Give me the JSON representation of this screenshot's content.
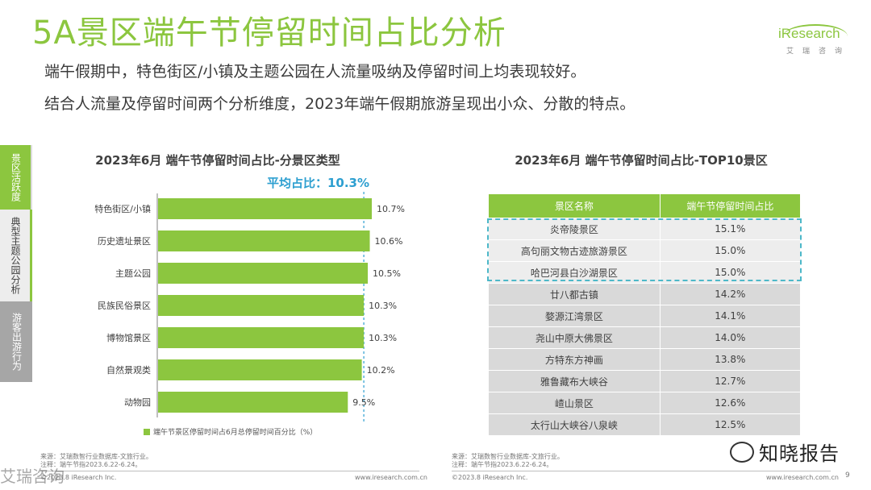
{
  "header": {
    "title": "5A景区端午节停留时间占比分析",
    "subtitle_1": "端午假期中，特色街区/小镇及主题公园在人流量吸纳及停留时间上均表现较好。",
    "subtitle_2": "结合人流量及停留时间两个分析维度，2023年端午假期旅游呈现出小众、分散的特点。"
  },
  "logo": {
    "name": "iResearch",
    "sub": "艾瑞咨询"
  },
  "sidebar": {
    "items": [
      {
        "label": "景区活跃度"
      },
      {
        "label": "典型主题公园分析"
      },
      {
        "label": "游客出游行为"
      }
    ]
  },
  "chart_data": [
    {
      "type": "bar",
      "orientation": "horizontal",
      "title": "2023年6月 端午节停留时间占比-分景区类型",
      "categories": [
        "特色街区/小镇",
        "历史遗址景区",
        "主题公园",
        "民族民俗景区",
        "博物馆景区",
        "自然景观类",
        "动物园"
      ],
      "values": [
        10.7,
        10.6,
        10.5,
        10.3,
        10.3,
        10.2,
        9.5
      ],
      "value_labels": [
        "10.7%",
        "10.6%",
        "10.5%",
        "10.3%",
        "10.3%",
        "10.2%",
        "9.5%"
      ],
      "average_label": "平均占比：10.3%",
      "average_value": 10.3,
      "legend": "端午节景区停留时间占6月总停留时间百分比（%）",
      "color": "#8cc63f",
      "avg_color": "#2d9fd0"
    },
    {
      "type": "table",
      "title": "2023年6月 端午节停留时间占比-TOP10景区",
      "columns": [
        "景区名称",
        "端午节停留时间占比"
      ],
      "rows": [
        [
          "炎帝陵景区",
          "15.1%"
        ],
        [
          "高句丽文物古迹旅游景区",
          "15.0%"
        ],
        [
          "哈巴河县白沙湖景区",
          "15.0%"
        ],
        [
          "廿八都古镇",
          "14.2%"
        ],
        [
          "婺源江湾景区",
          "14.1%"
        ],
        [
          "尧山中原大佛景区",
          "14.0%"
        ],
        [
          "方特东方神画",
          "13.8%"
        ],
        [
          "雅鲁藏布大峡谷",
          "12.7%"
        ],
        [
          "嵖山景区",
          "12.6%"
        ],
        [
          "太行山大峡谷八泉峡",
          "12.5%"
        ]
      ]
    }
  ],
  "footer": {
    "left_source_1": "来源：艾瑞数智行业数据库-文旅行业。",
    "left_source_2": "注释：端午节指2023.6.22-6.24。",
    "right_source_1": "来源：艾瑞数智行业数据库-文旅行业。",
    "right_source_2": "注释：端午节指2023.6.22-6.24。",
    "left_copy": "©2023.8 iResearch Inc.",
    "left_url": "www.iresearch.com.cn",
    "right_copy": "©2023.8 iResearch Inc.",
    "right_url": "www.iresearch.com.cn",
    "page": "9",
    "watermark": "知晓报告",
    "watermark_left": "艾瑞咨询"
  }
}
